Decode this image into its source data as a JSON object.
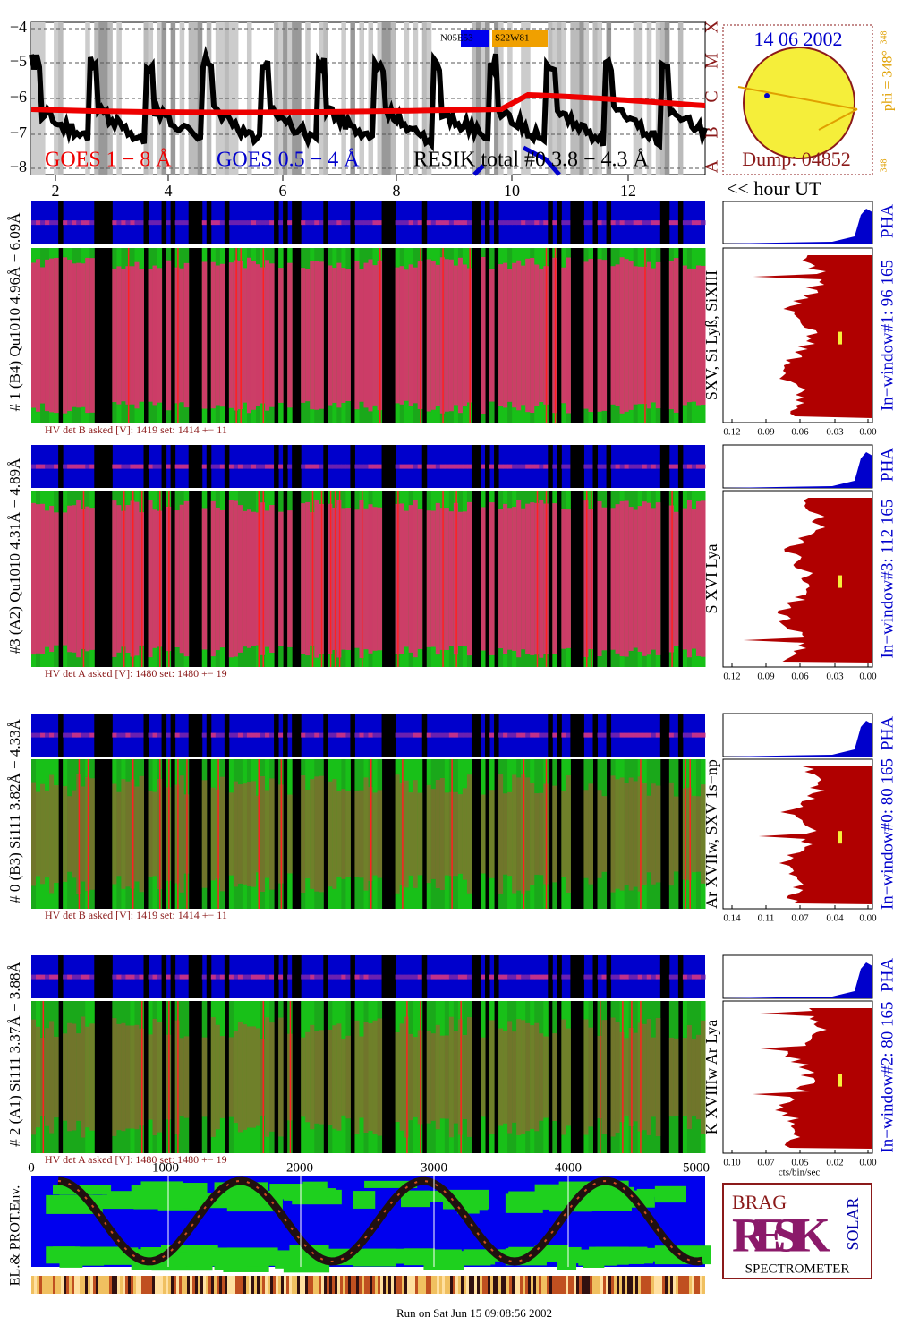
{
  "goes_panel": {
    "yticks": [
      "−4",
      "−5",
      "−6",
      "−7",
      "−8"
    ],
    "class_letters": [
      "X",
      "M",
      "C",
      "B",
      "A"
    ],
    "legend": [
      "N05E53",
      "S22W81"
    ],
    "labels": [
      "GOES 1 − 8 Å",
      "GOES 0.5 − 4 Å",
      "RESIK total #0  3.8 − 4.3 Å"
    ],
    "hour_ticks": [
      "2",
      "4",
      "6",
      "8",
      "10",
      "12"
    ],
    "hour_axis": "<< hour UT"
  },
  "sun_panel": {
    "date": "14 06 2002",
    "dump": "Dump: 04852",
    "phi": "phi = 348°",
    "phi_top": "348",
    "phi_bottom": "348"
  },
  "panels": [
    {
      "label": "# 1 (B4) Qu1010 4.96Å − 6.09Å",
      "hv": "HV det B asked [V]:  1419 set:  1414  +−   11",
      "lines": "SXV, Si Lyß, SiXIII",
      "window": "In−window#1:   96 165",
      "pha": "PHA",
      "xticks": [
        "0.12",
        "0.09",
        "0.06",
        "0.03",
        "0.00"
      ]
    },
    {
      "label": "#3 (A2) Qu1010  4.31Å − 4.89Å",
      "hv": "HV det A asked [V]:  1480 set:  1480  +−   19",
      "lines": "S XVI Lya",
      "window": "In−window#3:   112 165",
      "pha": "PHA",
      "xticks": [
        "0.12",
        "0.09",
        "0.06",
        "0.03",
        "0.00"
      ]
    },
    {
      "label": "# 0 (B3) Si111  3.82Å − 4.33Å",
      "hv": "HV det B asked [V]:  1419 set:  1414  +−   11",
      "lines": "Ar XVIIw,  SXV 1s−np",
      "window": "In−window#0:   80 165",
      "pha": "PHA",
      "xticks": [
        "0.14",
        "0.11",
        "0.07",
        "0.04",
        "0.00"
      ]
    },
    {
      "label": "# 2 (A1) Si111  3.37Å − 3.88Å",
      "hv": "HV det A asked [V]:  1480 set:  1480  +−   19",
      "lines": "K XVIIIw  Ar Lya",
      "window": "In−window#2:   80 165",
      "pha": "PHA",
      "xticks": [
        "0.10",
        "0.07",
        "0.05",
        "0.02",
        "0.00"
      ]
    }
  ],
  "hist_axis_label": "cts/bin/sec",
  "env_panel": {
    "xticks": [
      "0",
      "1000",
      "2000",
      "3000",
      "4000",
      "5000"
    ],
    "label": "EL.& PROT.Env."
  },
  "logo": {
    "brag": "BRAG",
    "resik": "RESIK",
    "solar": "SOLAR",
    "name": "SPECTROMETER"
  },
  "footer": "Run on Sat Jun 15 09:08:56 2002"
}
